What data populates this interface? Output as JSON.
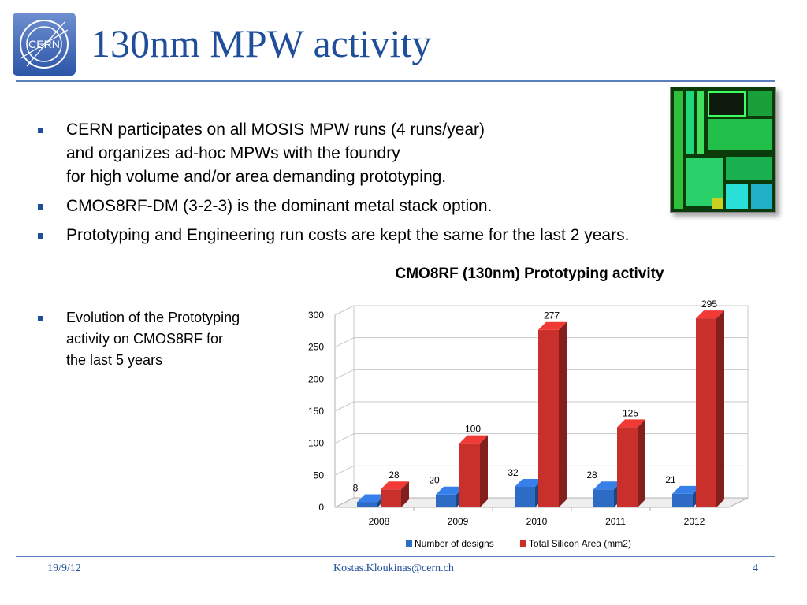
{
  "slide": {
    "title": "130nm MPW activity",
    "logo_text": "CERN",
    "bullets": [
      [
        "CERN participates on all MOSIS MPW runs (4 runs/year)",
        "and organizes ad-hoc MPWs with the foundry",
        "for high volume and/or area demanding prototyping."
      ],
      [
        "CMOS8RF-DM (3-2-3) is the dominant metal stack option."
      ],
      [
        "Prototyping and Engineering run costs are kept the same for the last 2 years."
      ]
    ],
    "side_bullet": [
      "Evolution of the Prototyping",
      "activity on CMOS8RF for",
      "the last 5 years"
    ],
    "footer": {
      "date": "19/9/12",
      "email": "Kostas.Kloukinas@cern.ch",
      "page": "4"
    },
    "colors": {
      "title": "#1f4e9a",
      "accent": "#1f4e9a"
    }
  },
  "chart_data": {
    "type": "bar",
    "title": "CMO8RF (130nm) Prototyping activity",
    "categories": [
      "2008",
      "2009",
      "2010",
      "2011",
      "2012"
    ],
    "series": [
      {
        "name": "Number of designs",
        "values": [
          8,
          20,
          32,
          28,
          21
        ],
        "color": "#2e6bc4"
      },
      {
        "name": "Total Silicon Area (mm2)",
        "values": [
          28,
          100,
          277,
          125,
          295
        ],
        "color": "#c9302c"
      }
    ],
    "yticks": [
      0,
      50,
      100,
      150,
      200,
      250,
      300
    ],
    "ylim": [
      0,
      300
    ],
    "grid": true,
    "legend": "bottom"
  }
}
